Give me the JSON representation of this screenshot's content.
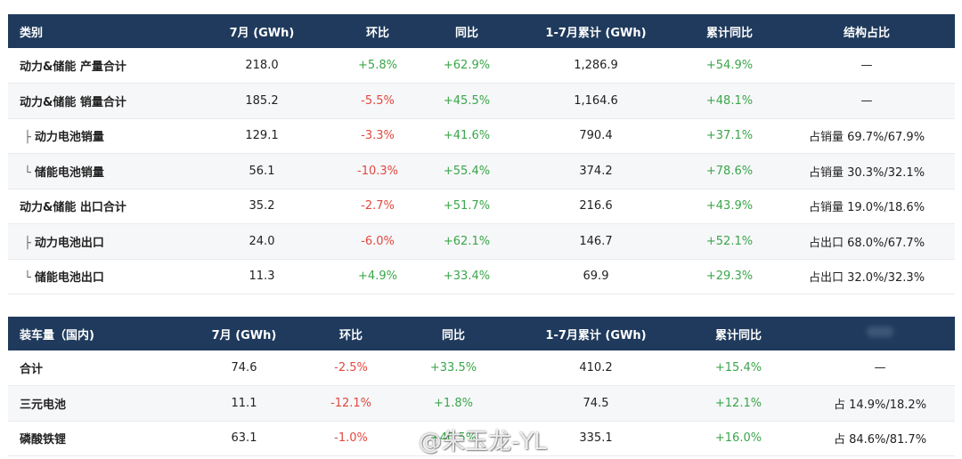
{
  "table1": {
    "headers": [
      "类别",
      "7月 (GWh)",
      "环比",
      "同比",
      "1-7月累计 (GWh)",
      "累计同比",
      "结构占比"
    ],
    "rows": [
      {
        "category": "动力&储能 产量合计",
        "prefix": "",
        "jul": "218.0",
        "mom": "+5.8%",
        "yoy": "+62.9%",
        "ytd": "1,286.9",
        "ytd_yoy": "+54.9%",
        "share": "—"
      },
      {
        "category": "动力&储能 销量合计",
        "prefix": "",
        "jul": "185.2",
        "mom": "-5.5%",
        "yoy": "+45.5%",
        "ytd": "1,164.6",
        "ytd_yoy": "+48.1%",
        "share": "—"
      },
      {
        "category": "动力电池销量",
        "prefix": "├",
        "jul": "129.1",
        "mom": "-3.3%",
        "yoy": "+41.6%",
        "ytd": "790.4",
        "ytd_yoy": "+37.1%",
        "share": "占销量 69.7%/67.9%"
      },
      {
        "category": "储能电池销量",
        "prefix": "└",
        "jul": "56.1",
        "mom": "-10.3%",
        "yoy": "+55.4%",
        "ytd": "374.2",
        "ytd_yoy": "+78.6%",
        "share": "占销量 30.3%/32.1%"
      },
      {
        "category": "动力&储能 出口合计",
        "prefix": "",
        "jul": "35.2",
        "mom": "-2.7%",
        "yoy": "+51.7%",
        "ytd": "216.6",
        "ytd_yoy": "+43.9%",
        "share": "占销量 19.0%/18.6%"
      },
      {
        "category": "动力电池出口",
        "prefix": "├",
        "jul": "24.0",
        "mom": "-6.0%",
        "yoy": "+62.1%",
        "ytd": "146.7",
        "ytd_yoy": "+52.1%",
        "share": "占出口 68.0%/67.7%"
      },
      {
        "category": "储能电池出口",
        "prefix": "└",
        "jul": "11.3",
        "mom": "+4.9%",
        "yoy": "+33.4%",
        "ytd": "69.9",
        "ytd_yoy": "+29.3%",
        "share": "占出口 32.0%/32.3%"
      }
    ]
  },
  "table2": {
    "headers": [
      "装车量（国内)",
      "7月 (GWh)",
      "环比",
      "同比",
      "1-7月累计 (GWh)",
      "累计同比",
      ""
    ],
    "rows": [
      {
        "category": "合计",
        "prefix": "",
        "jul": "74.6",
        "mom": "-2.5%",
        "yoy": "+33.5%",
        "ytd": "410.2",
        "ytd_yoy": "+15.4%",
        "share": "—"
      },
      {
        "category": "三元电池",
        "prefix": "",
        "jul": "11.1",
        "mom": "-12.1%",
        "yoy": "+1.8%",
        "ytd": "74.5",
        "ytd_yoy": "+12.1%",
        "share": "占 14.9%/18.2%"
      },
      {
        "category": "磷酸铁锂",
        "prefix": "",
        "jul": "63.1",
        "mom": "-1.0%",
        "yoy": "+40.5%",
        "ytd": "335.1",
        "ytd_yoy": "+16.0%",
        "share": "占 84.6%/81.7%"
      }
    ]
  },
  "watermark": "@朱玉龙-YL",
  "colors": {
    "header_bg": "#1f3a5c",
    "positive": "#3aa64a",
    "negative": "#e0483e"
  }
}
